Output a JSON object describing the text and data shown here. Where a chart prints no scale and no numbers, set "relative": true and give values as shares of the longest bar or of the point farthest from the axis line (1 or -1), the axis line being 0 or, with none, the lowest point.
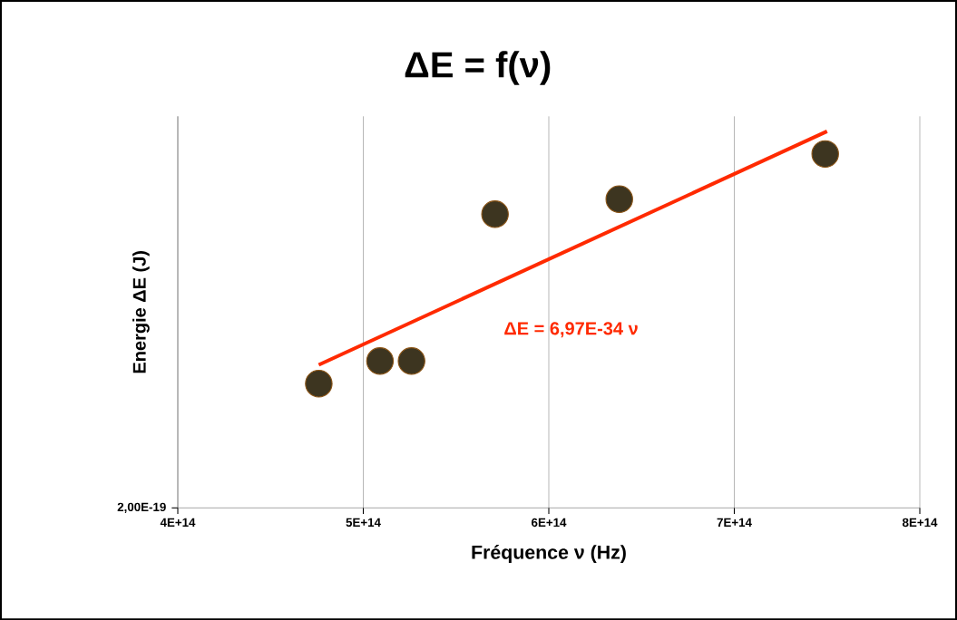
{
  "chart_data": {
    "type": "scatter",
    "title": "ΔE  = f(ν)",
    "xlabel": "Fréquence ν (Hz)",
    "ylabel": "Energie ΔE (J)",
    "relative": true,
    "grid": "x",
    "xlim": [
      400000000000000.0,
      800000000000000.0
    ],
    "xticks": [
      {
        "value": 400000000000000.0,
        "label": "4E+14"
      },
      {
        "value": 500000000000000.0,
        "label": "5E+14"
      },
      {
        "value": 600000000000000.0,
        "label": "6E+14"
      },
      {
        "value": 700000000000000.0,
        "label": "7E+14"
      },
      {
        "value": 800000000000000.0,
        "label": "8E+14"
      }
    ],
    "series": [
      {
        "marker": "circle",
        "color": "#3d3520",
        "x": [
          476000000000000.0,
          509000000000000.0,
          526000000000000.0,
          571000000000000.0,
          638000000000000.0,
          749000000000000.0
        ],
        "values": [
          0.33,
          0.39,
          0.39,
          0.78,
          0.82,
          0.94
        ]
      },
      {
        "type": "line",
        "marker": "none",
        "color": "#ff2a00",
        "x": [
          476000000000000.0,
          750000000000000.0
        ],
        "values": [
          0.38,
          1.0
        ]
      }
    ],
    "annotations": [
      "2,00E-19",
      "ΔE = 6,97E-34 ν"
    ]
  }
}
